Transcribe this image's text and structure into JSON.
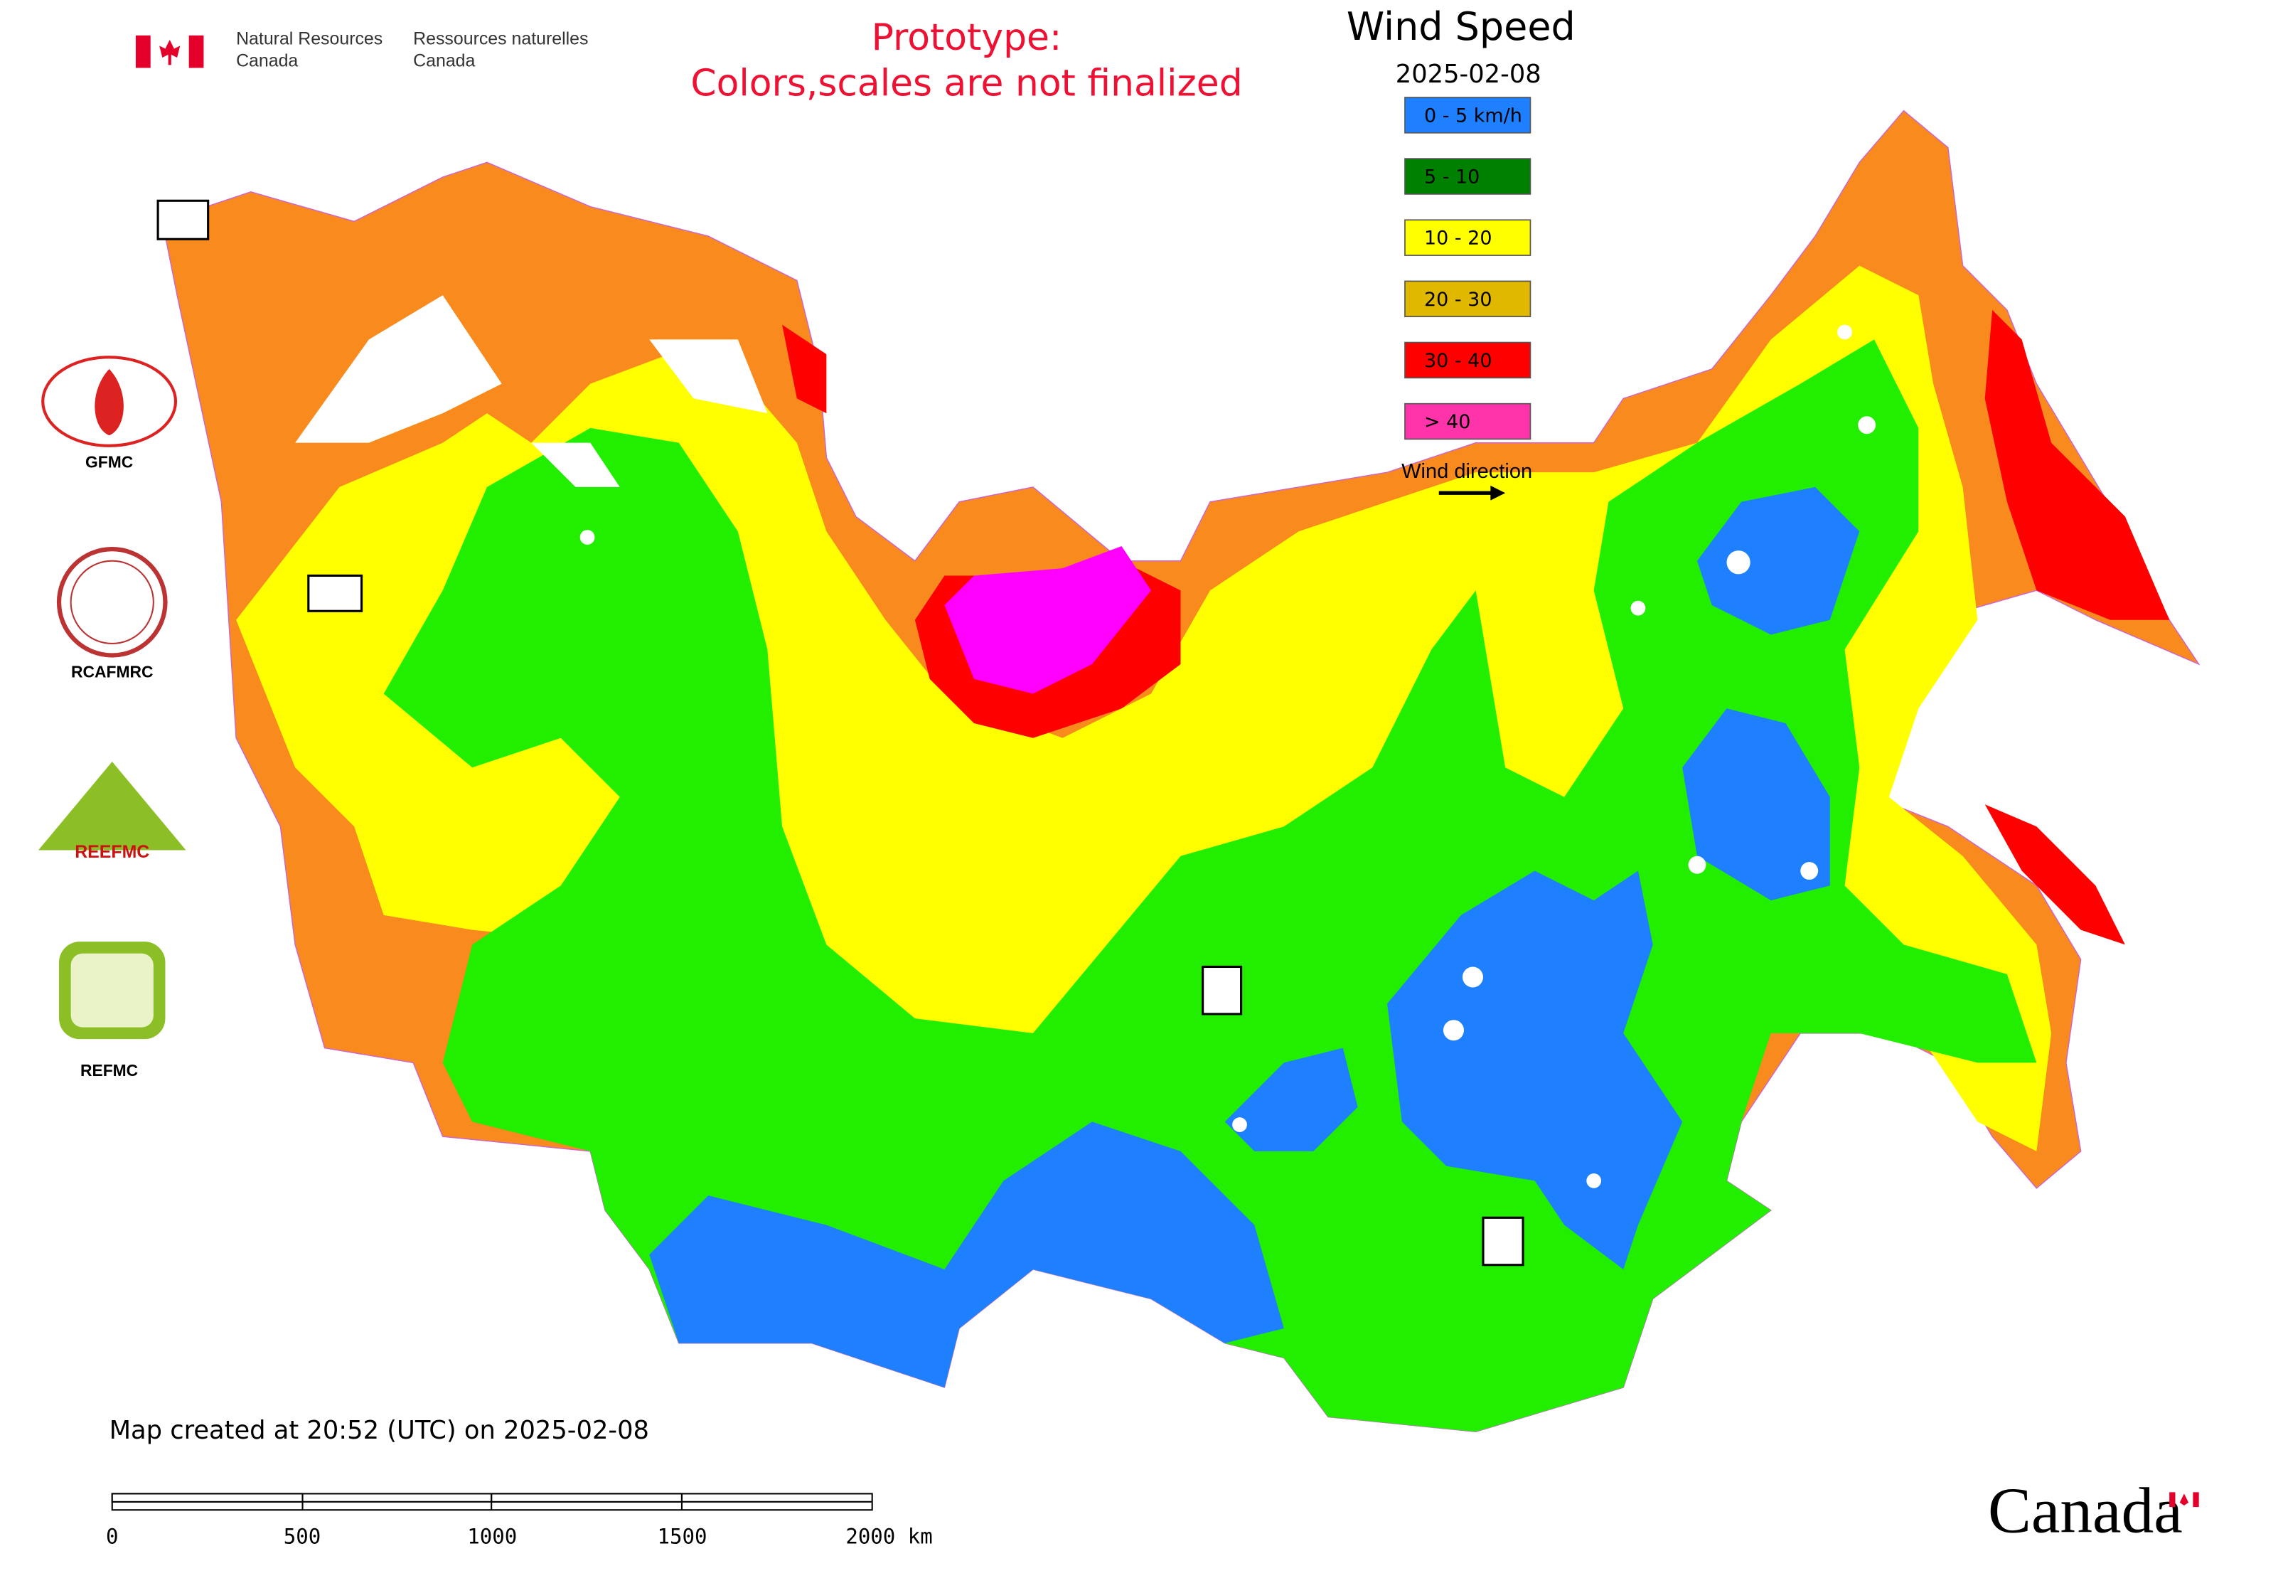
{
  "header": {
    "department_en": [
      "Natural Resources",
      "Canada"
    ],
    "department_fr": [
      "Ressources naturelles",
      "Canada"
    ],
    "notice": [
      "Prototype:",
      "Colors,scales are not finalized"
    ]
  },
  "legend": {
    "title": "Wind Speed",
    "date": "2025-02-08",
    "items": [
      {
        "label": "0 - 5 km/h",
        "color": "#1e7fff"
      },
      {
        "label": "5 - 10",
        "color": "#008000"
      },
      {
        "label": "10 - 20",
        "color": "#ffff00"
      },
      {
        "label": "20 - 30",
        "color": "#e0b800"
      },
      {
        "label": "30 - 40",
        "color": "#ff0000"
      },
      {
        "label": "> 40",
        "color": "#ff33aa"
      }
    ],
    "wind_direction": "Wind direction"
  },
  "partners": [
    "GFMC",
    "RCAFMRC",
    "REEFMC",
    "REFMC"
  ],
  "footer": {
    "created": "Map created at 20:52 (UTC) on 2025-02-08",
    "scale_labels": [
      "0",
      "500",
      "1000",
      "1500",
      "2000 km"
    ],
    "wordmark": "Canada"
  }
}
